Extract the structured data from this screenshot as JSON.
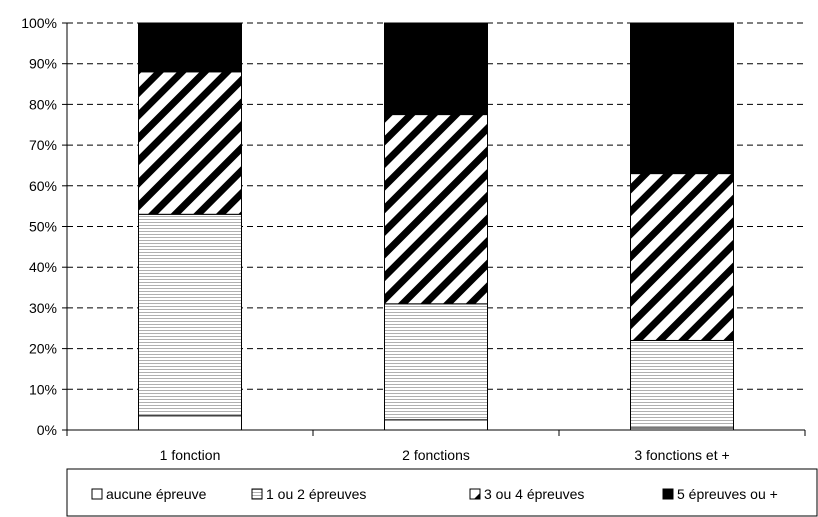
{
  "chart_data": {
    "type": "bar",
    "stacked": true,
    "categories": [
      "1 fonction",
      "2 fonctions",
      "3 fonctions et +"
    ],
    "series": [
      {
        "name": "aucune épreuve",
        "values": [
          3.5,
          2.5,
          0.5
        ],
        "pattern": "white"
      },
      {
        "name": "1 ou 2 épreuves",
        "values": [
          49.5,
          28.5,
          21.5
        ],
        "pattern": "horizontal-lines"
      },
      {
        "name": "3 ou 4 épreuves",
        "values": [
          35,
          46.5,
          41
        ],
        "pattern": "diagonal-hatch"
      },
      {
        "name": "5 épreuves ou +",
        "values": [
          12,
          22.5,
          37
        ],
        "pattern": "solid-black"
      }
    ],
    "ylim": [
      0,
      100
    ],
    "yticks": [
      "0%",
      "10%",
      "20%",
      "30%",
      "40%",
      "50%",
      "60%",
      "70%",
      "80%",
      "90%",
      "100%"
    ],
    "grid": "horizontal-dashed",
    "legend_position": "bottom",
    "title": "",
    "xlabel": "",
    "ylabel": "",
    "colors": {
      "ink": "#000000",
      "stripe": "#b0b0b0",
      "background": "#ffffff"
    }
  }
}
